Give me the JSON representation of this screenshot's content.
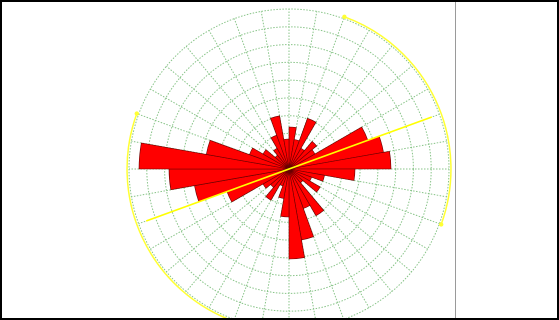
{
  "chart_data": {
    "type": "rose",
    "bin_width_deg": 10,
    "rings": 9,
    "spokes": 36,
    "grid": true,
    "frequencies": [
      7,
      5,
      9,
      4,
      6,
      5,
      14,
      16,
      17,
      11,
      6,
      4,
      6,
      3,
      9,
      7,
      12,
      15,
      8,
      5,
      3,
      6,
      4,
      5,
      11,
      16,
      20,
      25,
      14,
      7,
      5,
      3,
      4,
      6,
      9,
      5
    ],
    "mean_direction_deg": 70,
    "arcs_deg": [
      [
        20,
        110
      ],
      [
        200,
        290
      ]
    ]
  },
  "colors": {
    "bars": "#ff0000",
    "bar_edges": "#660000",
    "grid": "#88c488",
    "mean_line": "#ffff00",
    "arcs": "#ffff33",
    "window_border": "#000000",
    "divider": "#9a9a9a"
  }
}
